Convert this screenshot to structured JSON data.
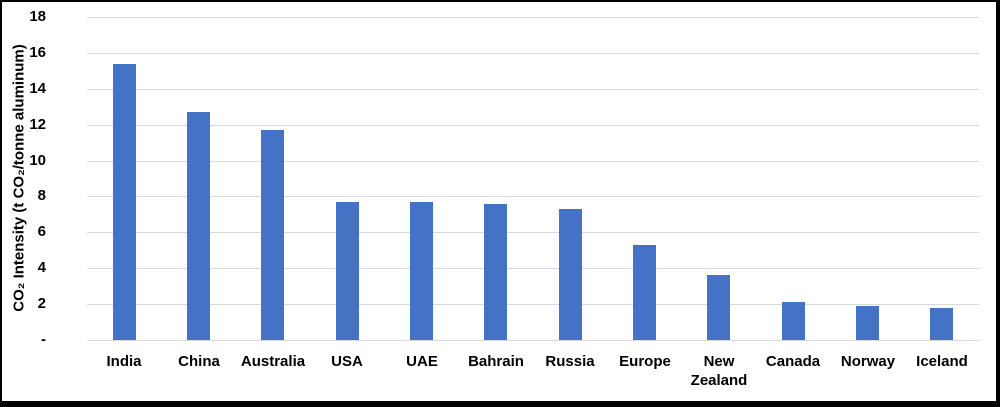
{
  "figure": {
    "background_color": "#FFFFFF",
    "frame_color": "#000000"
  },
  "chart_data": {
    "type": "bar",
    "title": "",
    "xlabel": "",
    "ylabel": "CO₂ Intensity (t CO₂/tonne aluminum)",
    "categories": [
      "India",
      "China",
      "Australia",
      "USA",
      "UAE",
      "Bahrain",
      "Russia",
      "Europe",
      "New Zealand",
      "Canada",
      "Norway",
      "Iceland"
    ],
    "values": [
      15.4,
      12.7,
      11.7,
      7.7,
      7.7,
      7.6,
      7.3,
      5.3,
      3.6,
      2.1,
      1.9,
      1.8
    ],
    "ylim": [
      0,
      18
    ],
    "yticks": [
      {
        "value": 18,
        "label": "18"
      },
      {
        "value": 16,
        "label": "16"
      },
      {
        "value": 14,
        "label": "14"
      },
      {
        "value": 12,
        "label": "12"
      },
      {
        "value": 10,
        "label": "10"
      },
      {
        "value": 8,
        "label": "8"
      },
      {
        "value": 6,
        "label": "6"
      },
      {
        "value": 4,
        "label": "4"
      },
      {
        "value": 2,
        "label": "2"
      },
      {
        "value": 0,
        "label": "-"
      }
    ],
    "grid": true,
    "legend": "none",
    "bar_color": "#4472C4",
    "gridline_color": "#D9D9D9"
  }
}
